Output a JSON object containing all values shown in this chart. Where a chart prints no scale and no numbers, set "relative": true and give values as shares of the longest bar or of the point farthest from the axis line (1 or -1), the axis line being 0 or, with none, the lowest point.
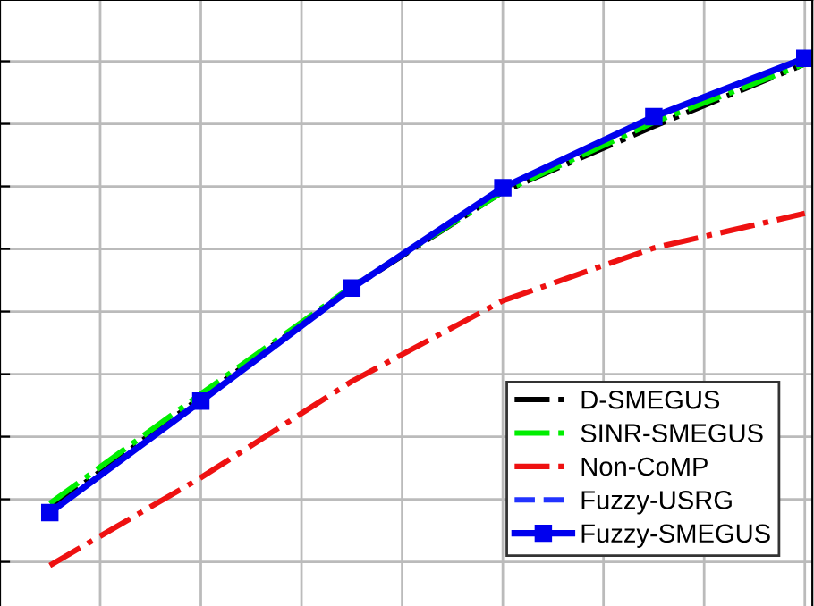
{
  "chart_data": {
    "type": "line",
    "relative": true,
    "categories": [
      null,
      null,
      null,
      null,
      null,
      null
    ],
    "grid": true,
    "legend": "bottom right",
    "series": [
      {
        "name": "D-SMEGUS",
        "color": "#000000",
        "line_style": "dashdot",
        "marker": "none",
        "values": [
          0.112,
          0.331,
          0.547,
          0.737,
          0.866,
          0.989
        ]
      },
      {
        "name": "SINR-SMEGUS",
        "color": "#00ee00",
        "line_style": "dashdot",
        "marker": "none",
        "values": [
          0.122,
          0.338,
          0.55,
          0.737,
          0.874,
          0.989
        ]
      },
      {
        "name": "Non-CoMP",
        "color": "#ee1111",
        "line_style": "dashdot",
        "marker": "none",
        "values": [
          0.0,
          0.173,
          0.363,
          0.522,
          0.626,
          0.694
        ]
      },
      {
        "name": "Fuzzy-USRG",
        "color": "#2233ff",
        "line_style": "dashed",
        "marker": "none",
        "values": [
          null,
          null,
          null,
          null,
          null,
          null
        ]
      },
      {
        "name": "Fuzzy-SMEGUS",
        "color": "#0000ee",
        "line_style": "solid",
        "marker": "square",
        "values": [
          0.104,
          0.324,
          0.547,
          0.745,
          0.885,
          1.0
        ]
      }
    ]
  }
}
